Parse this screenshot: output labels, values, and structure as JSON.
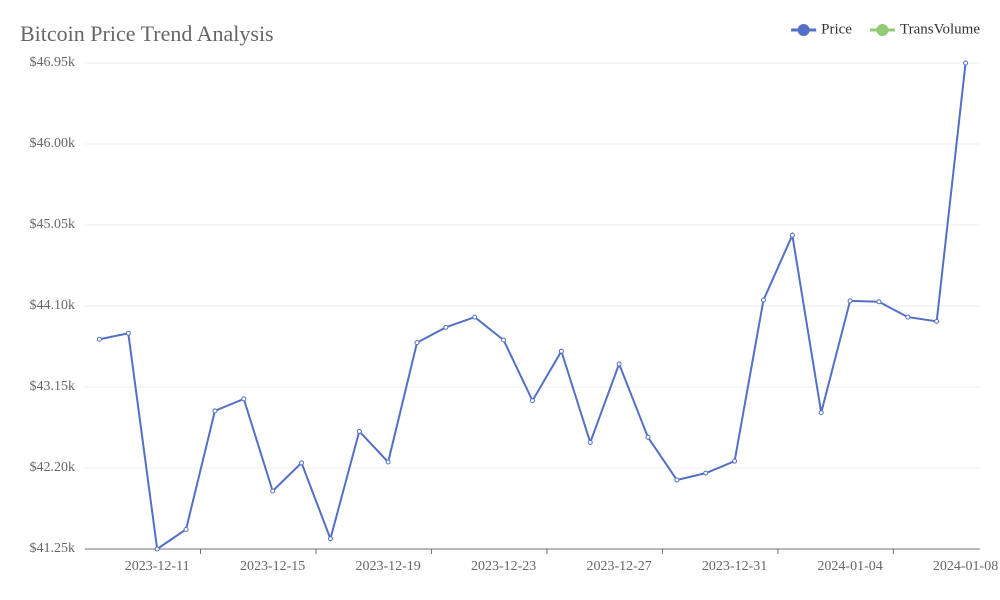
{
  "chart_data": {
    "type": "line",
    "title": "Bitcoin Price Trend Analysis",
    "categories": [
      null,
      null,
      "2023-12-11",
      null,
      null,
      null,
      "2023-12-15",
      null,
      null,
      null,
      "2023-12-19",
      null,
      null,
      null,
      "2023-12-23",
      null,
      null,
      null,
      "2023-12-27",
      null,
      null,
      null,
      "2023-12-31",
      null,
      null,
      null,
      "2024-01-04",
      null,
      null,
      null,
      "2024-01-08"
    ],
    "series": [
      {
        "name": "Price",
        "color": "#5470c6",
        "values": [
          43710,
          43780,
          41250,
          41480,
          42870,
          43010,
          41930,
          42260,
          41370,
          42630,
          42270,
          43670,
          43850,
          43970,
          43700,
          42990,
          43570,
          42500,
          43420,
          42560,
          42060,
          42140,
          42280,
          44170,
          44930,
          42850,
          44160,
          44150,
          43970,
          43920,
          46950
        ]
      },
      {
        "name": "TransVolume",
        "color": "#91cc75",
        "values": [
          null,
          null,
          null,
          null,
          null,
          null,
          null,
          null,
          null,
          null,
          null,
          null,
          null,
          null,
          null,
          null,
          null,
          null,
          null,
          null,
          null,
          null,
          null,
          null,
          null,
          null,
          null,
          null,
          null,
          null,
          null
        ]
      }
    ],
    "ylim": [
      41250,
      46950
    ],
    "yticks": [
      {
        "value": 41250,
        "label": "$41.25k"
      },
      {
        "value": 42200,
        "label": "$42.20k"
      },
      {
        "value": 43150,
        "label": "$43.15k"
      },
      {
        "value": 44100,
        "label": "$44.10k"
      },
      {
        "value": 45050,
        "label": "$45.05k"
      },
      {
        "value": 46000,
        "label": "$46.00k"
      },
      {
        "value": 46950,
        "label": "$46.95k"
      }
    ],
    "grid": true,
    "legend": "top-right"
  }
}
